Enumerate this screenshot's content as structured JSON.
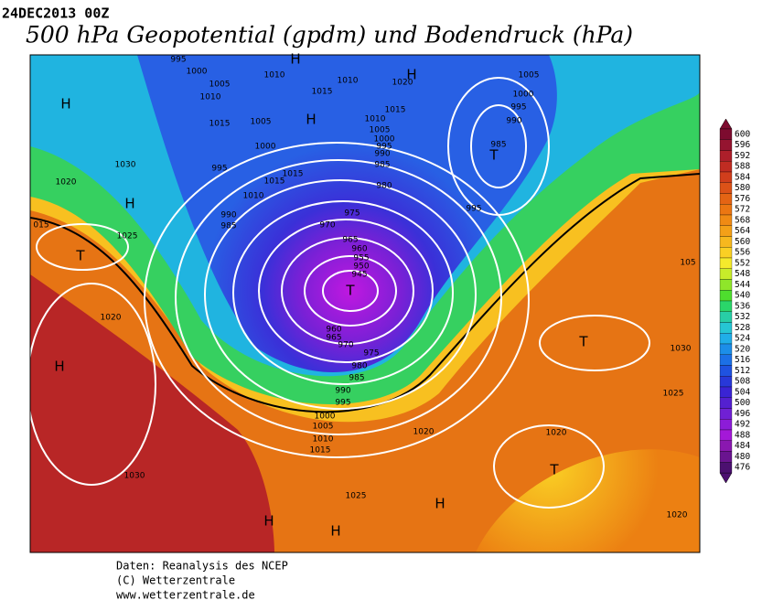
{
  "header": {
    "date": "24DEC2013 00Z",
    "title": "500 hPa Geopotential (gpdm) und Bodendruck (hPa)"
  },
  "isobar_labels": [
    995,
    1000,
    1005,
    1010,
    1015,
    1010,
    1015,
    1010,
    1020,
    1005,
    1000,
    995,
    990,
    985,
    1010,
    1015,
    1005,
    1000,
    995,
    990,
    985,
    1005,
    1000,
    995,
    1015,
    1015,
    1010,
    990,
    985,
    980,
    975,
    970,
    995,
    965,
    960,
    955,
    950,
    945,
    960,
    965,
    970,
    975,
    980,
    985,
    990,
    995,
    1000,
    1005,
    1010,
    1015,
    1020,
    1025,
    1030,
    1020,
    1025,
    1020,
    1030,
    "015",
    1020,
    1025,
    1030,
    "105",
    1020
  ],
  "pressure_systems": [
    "H",
    "H",
    "H",
    "H",
    "H",
    "T",
    "T",
    "T",
    "T",
    "T",
    "H",
    "H",
    "H",
    "H"
  ],
  "scale": {
    "labels": [
      600,
      596,
      592,
      588,
      584,
      580,
      576,
      572,
      568,
      564,
      560,
      556,
      552,
      548,
      544,
      540,
      536,
      532,
      528,
      524,
      520,
      516,
      512,
      508,
      504,
      500,
      496,
      492,
      488,
      484,
      480,
      476
    ],
    "colors": [
      "#7d0b2f",
      "#951430",
      "#ad1f2a",
      "#c02c22",
      "#d03e1c",
      "#dc5218",
      "#e46414",
      "#eb7612",
      "#f08a14",
      "#f4a018",
      "#f7b81e",
      "#fad024",
      "#f5ea2c",
      "#c8ec2a",
      "#8fe62a",
      "#4ede2e",
      "#2ad66a",
      "#28cea6",
      "#26c6d4",
      "#20aee8",
      "#1c8ee8",
      "#1c70e6",
      "#1f52e0",
      "#2838d8",
      "#3a24d4",
      "#5420d0",
      "#7020d4",
      "#8c1cd8",
      "#a418d8",
      "#8a18b0",
      "#6a1490",
      "#4c1070"
    ]
  },
  "footer": [
    "Daten: Reanalysis des NCEP",
    "(C) Wetterzentrale",
    "www.wetterzentrale.de"
  ]
}
